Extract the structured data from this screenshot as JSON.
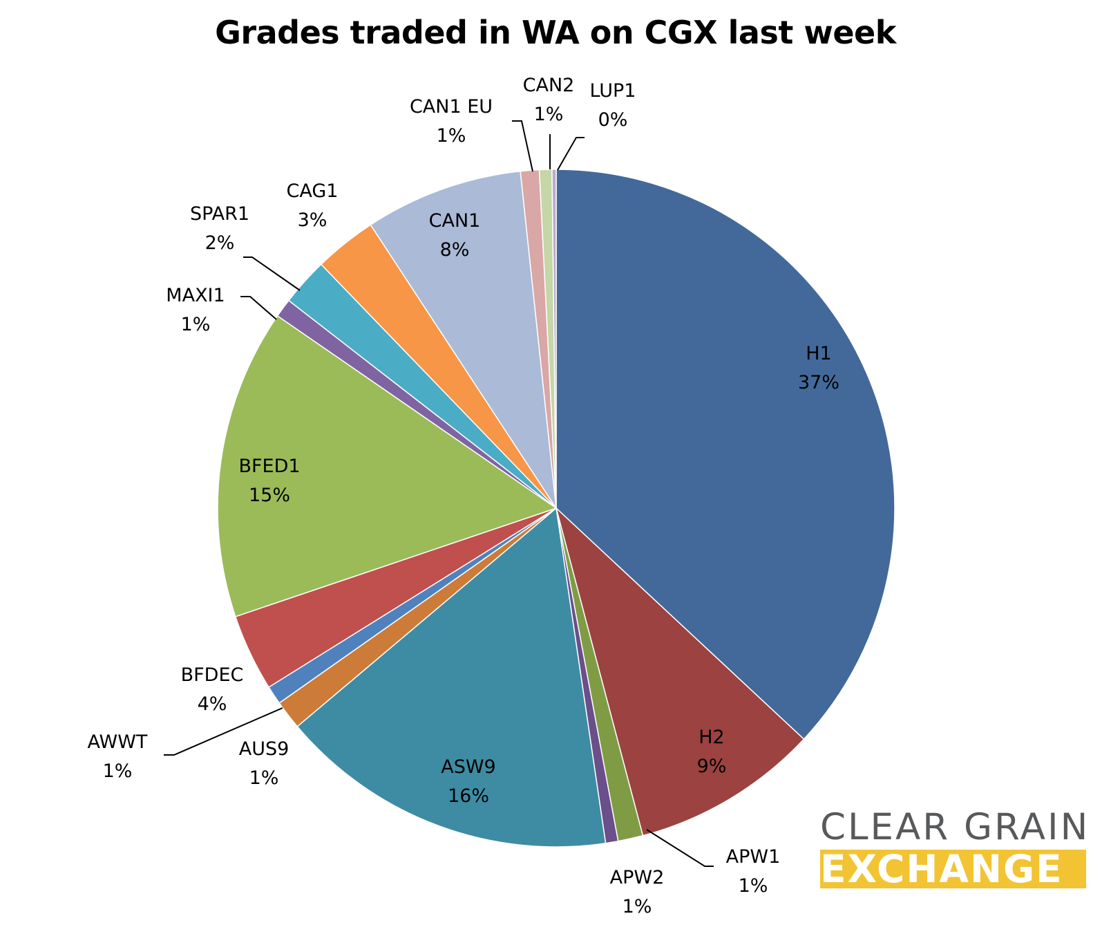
{
  "chart_data": {
    "type": "pie",
    "title": "Grades traded in WA on CGX last week",
    "slices": [
      {
        "label": "H1",
        "pct_label": "37%",
        "value": 37.2,
        "color": "#43699a"
      },
      {
        "label": "H2",
        "pct_label": "9%",
        "value": 9.0,
        "color": "#9c4240"
      },
      {
        "label": "APW1",
        "pct_label": "1%",
        "value": 1.2,
        "color": "#7f9c45"
      },
      {
        "label": "APW2",
        "pct_label": "1%",
        "value": 0.6,
        "color": "#6a4f8a"
      },
      {
        "label": "ASW9",
        "pct_label": "16%",
        "value": 16.3,
        "color": "#3d8ca3"
      },
      {
        "label": "AUS9",
        "pct_label": "1%",
        "value": 1.4,
        "color": "#cd7b38"
      },
      {
        "label": "AWWT",
        "pct_label": "1%",
        "value": 0.9,
        "color": "#4f82bd"
      },
      {
        "label": "BFDEC",
        "pct_label": "4%",
        "value": 3.7,
        "color": "#c0504d"
      },
      {
        "label": "BFED1",
        "pct_label": "15%",
        "value": 14.9,
        "color": "#9bbb59"
      },
      {
        "label": "MAXI1",
        "pct_label": "1%",
        "value": 0.9,
        "color": "#8064a2"
      },
      {
        "label": "SPAR1",
        "pct_label": "2%",
        "value": 2.3,
        "color": "#4bacc6"
      },
      {
        "label": "CAG1",
        "pct_label": "3%",
        "value": 3.0,
        "color": "#f79646"
      },
      {
        "label": "CAN1",
        "pct_label": "8%",
        "value": 7.6,
        "color": "#aabad7"
      },
      {
        "label": "CAN1 EU",
        "pct_label": "1%",
        "value": 0.9,
        "color": "#d9a7a6"
      },
      {
        "label": "CAN2",
        "pct_label": "1%",
        "value": 0.6,
        "color": "#c5d6a7"
      },
      {
        "label": "LUP1",
        "pct_label": "0%",
        "value": 0.2,
        "color": "#b9acc9"
      }
    ]
  },
  "logo": {
    "line1": "CLEAR GRAIN",
    "line2": "EXCHANGE",
    "color_text": "#58595b",
    "color_band": "#f2c434"
  }
}
